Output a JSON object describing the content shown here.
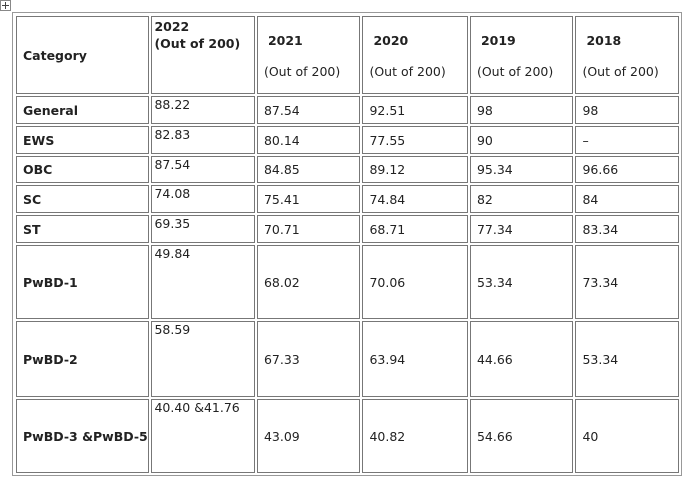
{
  "table": {
    "category_header": "Category",
    "header": [
      {
        "year": "2022",
        "note": "(Out of 200)"
      },
      {
        "year": "2021",
        "note": "(Out of 200)"
      },
      {
        "year": "2020",
        "note": "(Out of 200)"
      },
      {
        "year": "2019",
        "note": "(Out of 200)"
      },
      {
        "year": "2018",
        "note": "(Out of 200)"
      }
    ],
    "rows": [
      [
        "General",
        "88.22",
        "87.54",
        "92.51",
        "98",
        "98"
      ],
      [
        "EWS",
        "82.83",
        "80.14",
        "77.55",
        "90",
        "–"
      ],
      [
        "OBC",
        "87.54",
        "84.85",
        "89.12",
        "95.34",
        "96.66"
      ],
      [
        "SC",
        "74.08",
        "75.41",
        "74.84",
        "82",
        "84"
      ],
      [
        "ST",
        "69.35",
        "70.71",
        "68.71",
        "77.34",
        "83.34"
      ],
      [
        "PwBD-1",
        "49.84",
        "68.02",
        "70.06",
        "53.34",
        "73.34"
      ],
      [
        "PwBD-2",
        "58.59",
        "67.33",
        "63.94",
        "44.66",
        "53.34"
      ],
      [
        "PwBD-3 &PwBD-5",
        "40.40 &41.76",
        "43.09",
        "40.82",
        "54.66",
        "40"
      ]
    ]
  }
}
